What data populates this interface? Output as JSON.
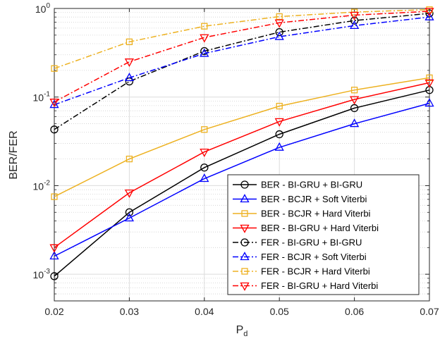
{
  "chart_data": {
    "type": "line",
    "yscale": "log",
    "xlabel": "P",
    "xlabel_subscript": "d",
    "ylabel": "BER/FER",
    "xlim": [
      0.02,
      0.07
    ],
    "ylim": [
      0.0005,
      1
    ],
    "grid": true,
    "legend_position": "bottom-right",
    "x_ticks": [
      "0.02",
      "0.03",
      "0.04",
      "0.05",
      "0.06",
      "0.07"
    ],
    "y_ticks": [
      {
        "value": 0.001,
        "base": "10",
        "exp": "-3"
      },
      {
        "value": 0.01,
        "base": "10",
        "exp": "-2"
      },
      {
        "value": 0.1,
        "base": "10",
        "exp": "-1"
      },
      {
        "value": 1,
        "base": "10",
        "exp": "0"
      }
    ],
    "x": [
      0.02,
      0.03,
      0.04,
      0.05,
      0.06,
      0.07
    ],
    "series": [
      {
        "name": "BER - BI-GRU + BI-GRU",
        "color": "#000000",
        "dash": "solid",
        "marker": "circle",
        "values": [
          0.00095,
          0.005,
          0.016,
          0.038,
          0.075,
          0.12
        ]
      },
      {
        "name": "BER - BCJR + Soft Viterbi",
        "color": "#0000ff",
        "dash": "solid",
        "marker": "triangle-up",
        "values": [
          0.0016,
          0.0043,
          0.012,
          0.027,
          0.05,
          0.085
        ]
      },
      {
        "name": "BER - BCJR + Hard Viterbi",
        "color": "#edb120",
        "dash": "solid",
        "marker": "square",
        "values": [
          0.0075,
          0.02,
          0.043,
          0.079,
          0.12,
          0.165
        ]
      },
      {
        "name": "BER - BI-GRU + Hard Viterbi",
        "color": "#ff0000",
        "dash": "solid",
        "marker": "triangle-down",
        "values": [
          0.002,
          0.0083,
          0.024,
          0.053,
          0.094,
          0.145
        ]
      },
      {
        "name": "FER - BI-GRU + BI-GRU",
        "color": "#000000",
        "dash": "dashdot",
        "marker": "circle",
        "values": [
          0.043,
          0.15,
          0.33,
          0.54,
          0.73,
          0.88
        ]
      },
      {
        "name": "FER - BCJR + Soft Viterbi",
        "color": "#0000ff",
        "dash": "dashdot",
        "marker": "triangle-up",
        "values": [
          0.082,
          0.165,
          0.31,
          0.48,
          0.64,
          0.8
        ]
      },
      {
        "name": "FER - BCJR + Hard Viterbi",
        "color": "#edb120",
        "dash": "dashdot",
        "marker": "square",
        "values": [
          0.21,
          0.42,
          0.63,
          0.81,
          0.91,
          0.97
        ]
      },
      {
        "name": "FER - BI-GRU + Hard Viterbi",
        "color": "#ff0000",
        "dash": "dashdot",
        "marker": "triangle-down",
        "values": [
          0.088,
          0.25,
          0.47,
          0.69,
          0.84,
          0.93
        ]
      }
    ]
  }
}
